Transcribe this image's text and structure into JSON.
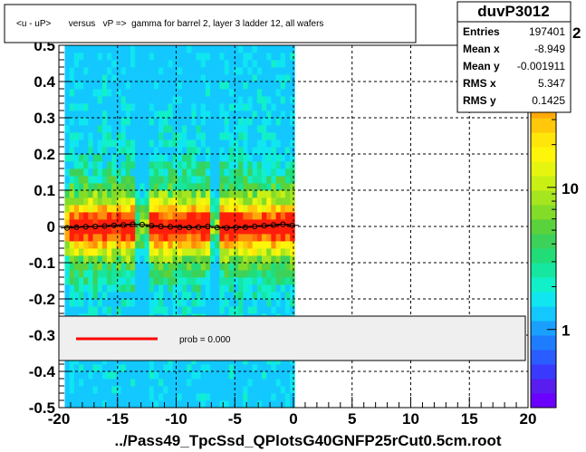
{
  "chart_data": {
    "type": "heatmap",
    "title": "<u - uP>       versus   vP =>  gamma for barrel 2, layer 3 ladder 12, all wafers",
    "xlabel": "../Pass49_TpcSsd_QPlotsG40GNFP25rCut0.5cm.root",
    "ylabel": "",
    "xlim": [
      -20,
      20
    ],
    "ylim": [
      -0.5,
      0.5
    ],
    "x_ticks": [
      "-20",
      "-15",
      "-10",
      "-5",
      "0",
      "5",
      "10",
      "15",
      "20"
    ],
    "y_ticks": [
      "-0.5",
      "-0.4",
      "-0.3",
      "-0.2",
      "-0.1",
      "0",
      "0.1",
      "0.2",
      "0.3",
      "0.4",
      "0.5"
    ],
    "y_tick_values": [
      -0.5,
      -0.4,
      -0.3,
      -0.2,
      -0.1,
      0,
      0.1,
      0.2,
      0.3,
      0.4,
      0.5
    ],
    "grid": true,
    "occupied_x_range": [
      -19.5,
      0
    ],
    "gap_columns_x": [
      -12.9,
      -6.7
    ],
    "profile_points": {
      "x": [
        -19.3,
        -18.5,
        -17.7,
        -16.9,
        -16.1,
        -15.3,
        -14.5,
        -13.7,
        -12.9,
        -12.1,
        -11.3,
        -10.5,
        -9.7,
        -8.9,
        -8.1,
        -7.3,
        -6.5,
        -5.7,
        -4.9,
        -4.1,
        -3.3,
        -2.5,
        -1.7,
        -0.9,
        -0.1
      ],
      "y": [
        -0.004,
        -0.002,
        -0.001,
        0.0,
        0.001,
        0.003,
        0.004,
        0.006,
        0.005,
        0.002,
        0.0,
        -0.001,
        -0.002,
        -0.003,
        -0.002,
        0.0,
        -0.003,
        -0.004,
        -0.003,
        -0.002,
        0.0,
        0.002,
        0.004,
        0.006,
        0.003
      ]
    },
    "colorbar": {
      "scale": "log",
      "tick_labels": [
        "1",
        "10"
      ],
      "tick_values": [
        1,
        10
      ],
      "exponent_label": "2"
    }
  },
  "stats_box": {
    "title": "duvP3012",
    "rows": [
      {
        "label": "Entries",
        "value": "197401"
      },
      {
        "label": "Mean x",
        "value": "-8.949"
      },
      {
        "label": "Mean y",
        "value": "-0.001911"
      },
      {
        "label": "RMS x",
        "value": "5.347"
      },
      {
        "label": "RMS y",
        "value": "0.1425"
      }
    ]
  },
  "legend": {
    "fit_label": "prob = 0.000",
    "line_color": "#ff0000"
  },
  "colors": {
    "axis": "#000000",
    "grid": "#000000",
    "marker": "#000000"
  }
}
